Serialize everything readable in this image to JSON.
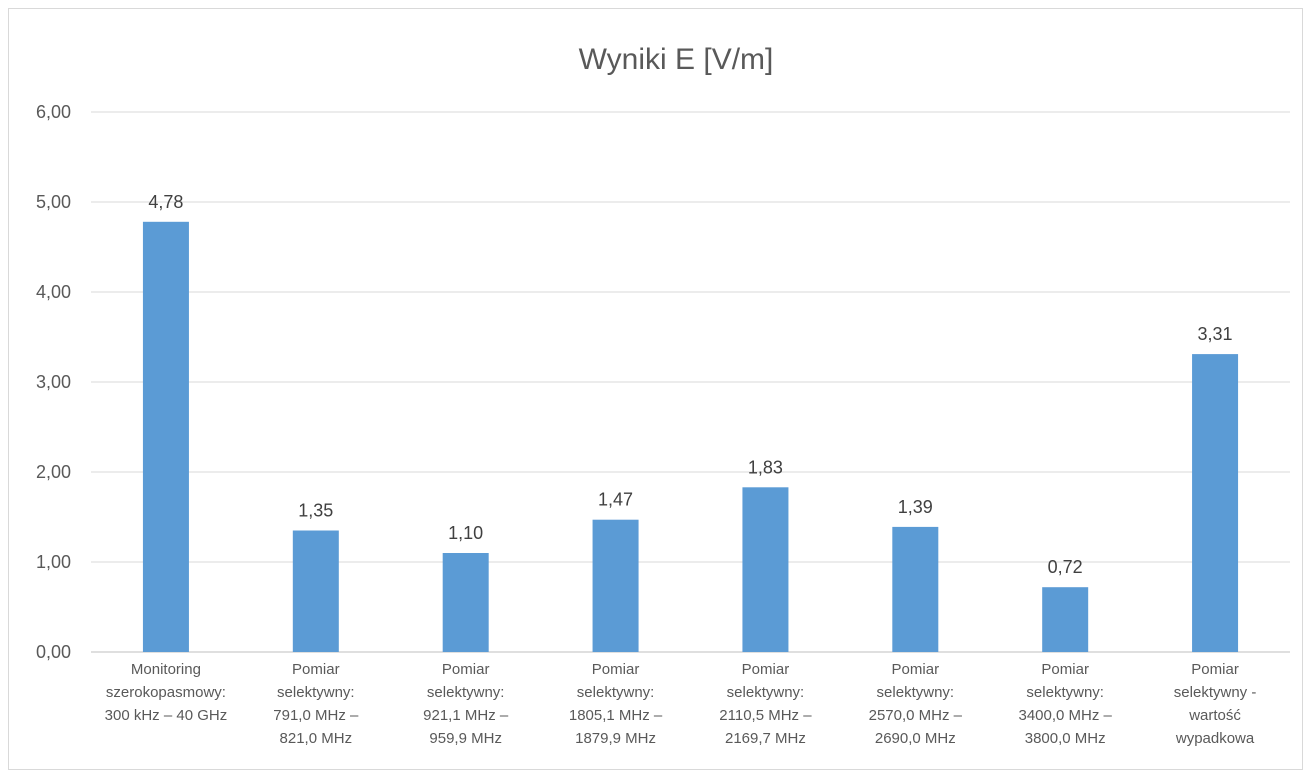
{
  "chart_data": {
    "type": "bar",
    "title": "Wyniki E [V/m]",
    "xlabel": "",
    "ylabel": "",
    "ylim": [
      0,
      6
    ],
    "yticks": [
      "0,00",
      "1,00",
      "2,00",
      "3,00",
      "4,00",
      "5,00",
      "6,00"
    ],
    "grid": true,
    "legend": "none",
    "bar_color": "#5b9bd5",
    "categories": [
      [
        "Monitoring",
        "szerokopasmowy:",
        "300 kHz – 40 GHz"
      ],
      [
        "Pomiar",
        "selektywny:",
        "791,0 MHz –",
        "821,0 MHz"
      ],
      [
        "Pomiar",
        "selektywny:",
        "921,1 MHz –",
        "959,9 MHz"
      ],
      [
        "Pomiar",
        "selektywny:",
        "1805,1 MHz –",
        "1879,9 MHz"
      ],
      [
        "Pomiar",
        "selektywny:",
        "2110,5 MHz –",
        "2169,7 MHz"
      ],
      [
        "Pomiar",
        "selektywny:",
        "2570,0 MHz –",
        "2690,0 MHz"
      ],
      [
        "Pomiar",
        "selektywny:",
        "3400,0 MHz –",
        "3800,0 MHz"
      ],
      [
        "Pomiar",
        "selektywny -",
        "wartość",
        "wypadkowa"
      ]
    ],
    "values": [
      4.78,
      1.35,
      1.1,
      1.47,
      1.83,
      1.39,
      0.72,
      3.31
    ],
    "data_labels": [
      "4,78",
      "1,35",
      "1,10",
      "1,47",
      "1,83",
      "1,39",
      "0,72",
      "3,31"
    ]
  }
}
